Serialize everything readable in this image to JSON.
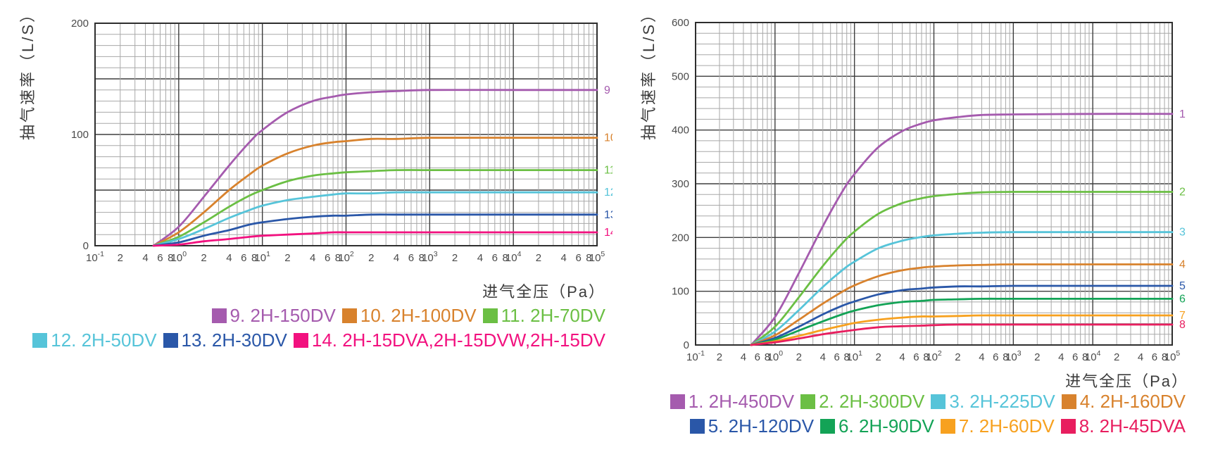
{
  "chart_data": [
    {
      "type": "line",
      "title": "",
      "ylabel": "抽气速率（L/S）",
      "xlabel": "进气全压（Pa）",
      "x_scale": "log",
      "xlim": [
        0.1,
        100000
      ],
      "ylim": [
        0,
        200
      ],
      "y_tick_labels": [
        "0",
        "100",
        "200"
      ],
      "y_minor_step": 10,
      "y_major_step": 50,
      "x_exponents": [
        -1,
        0,
        1,
        2,
        3,
        4,
        5
      ],
      "x_minor_labels": [
        "2",
        "4",
        "6",
        "8"
      ],
      "grid": "on",
      "legend_position": "bottom-right",
      "x_pa": [
        0.5,
        1,
        2,
        4,
        7,
        10,
        20,
        40,
        70,
        100,
        200,
        400,
        1000,
        10000,
        100000
      ],
      "series": [
        {
          "id": "9",
          "legend": "9. 2H-150DV",
          "color": "#a55bae",
          "max_speed_ls": 140,
          "speed_ls": [
            0,
            17,
            44,
            72,
            93,
            104,
            120,
            130,
            134,
            136,
            138,
            139,
            140,
            140,
            140
          ]
        },
        {
          "id": "10",
          "legend": "10. 2H-100DV",
          "color": "#d8822d",
          "max_speed_ls": 97,
          "speed_ls": [
            0,
            12,
            30,
            50,
            64,
            72,
            83,
            90,
            93,
            94,
            96,
            96,
            97,
            97,
            97
          ]
        },
        {
          "id": "11",
          "legend": "11.  2H-70DV",
          "color": "#6bbf44",
          "max_speed_ls": 68,
          "speed_ls": [
            0,
            8,
            21,
            35,
            45,
            50,
            58,
            63,
            65,
            66,
            67,
            68,
            68,
            68,
            68
          ]
        },
        {
          "id": "12",
          "legend": "12. 2H-50DV",
          "color": "#56c4d9",
          "max_speed_ls": 48,
          "speed_ls": [
            0,
            6,
            15,
            25,
            32,
            36,
            41,
            44,
            46,
            47,
            47,
            48,
            48,
            48,
            48
          ]
        },
        {
          "id": "13",
          "legend": "13. 2H-30DV",
          "color": "#2a57a8",
          "max_speed_ls": 28,
          "speed_ls": [
            0,
            3,
            9,
            14,
            19,
            21,
            24,
            26,
            27,
            27,
            28,
            28,
            28,
            28,
            28
          ]
        },
        {
          "id": "14",
          "legend": "14. 2H-15DVA,2H-15DVW,2H-15DV",
          "color": "#f2117f",
          "max_speed_ls": 12,
          "speed_ls": [
            0,
            1,
            4,
            6,
            8,
            9,
            10,
            11,
            12,
            12,
            12,
            12,
            12,
            12,
            12
          ]
        }
      ]
    },
    {
      "type": "line",
      "title": "",
      "ylabel": "抽气速率（L/S）",
      "xlabel": "进气全压（Pa）",
      "x_scale": "log",
      "xlim": [
        0.1,
        100000
      ],
      "ylim": [
        0,
        600
      ],
      "y_tick_labels": [
        "0",
        "100",
        "200",
        "300",
        "400",
        "500",
        "600"
      ],
      "y_minor_step": 20,
      "y_major_step": 100,
      "x_exponents": [
        -1,
        0,
        1,
        2,
        3,
        4,
        5
      ],
      "x_minor_labels": [
        "2",
        "4",
        "6",
        "8"
      ],
      "grid": "on",
      "legend_position": "bottom-right",
      "x_pa": [
        0.5,
        1,
        2,
        4,
        7,
        10,
        20,
        40,
        70,
        100,
        200,
        400,
        1000,
        10000,
        100000
      ],
      "series": [
        {
          "id": "1",
          "legend": "1. 2H-450DV",
          "color": "#a55bae",
          "max_speed_ls": 430,
          "speed_ls": [
            0,
            52,
            134,
            221,
            285,
            318,
            368,
            398,
            412,
            418,
            424,
            428,
            429,
            430,
            430
          ]
        },
        {
          "id": "2",
          "legend": "2. 2H-300DV",
          "color": "#6bbf44",
          "max_speed_ls": 285,
          "speed_ls": [
            0,
            34,
            89,
            147,
            189,
            211,
            244,
            264,
            273,
            277,
            281,
            284,
            285,
            285,
            285
          ]
        },
        {
          "id": "3",
          "legend": "3. 2H-225DV",
          "color": "#56c4d9",
          "max_speed_ls": 210,
          "speed_ls": [
            0,
            25,
            65,
            108,
            139,
            155,
            180,
            194,
            201,
            204,
            207,
            209,
            210,
            210,
            210
          ]
        },
        {
          "id": "4",
          "legend": "4. 2H-160DV",
          "color": "#d8822d",
          "max_speed_ls": 150,
          "speed_ls": [
            0,
            18,
            47,
            77,
            99,
            111,
            128,
            139,
            144,
            146,
            148,
            149,
            150,
            150,
            150
          ]
        },
        {
          "id": "5",
          "legend": "5. 2H-120DV",
          "color": "#2a57a8",
          "max_speed_ls": 110,
          "speed_ls": [
            0,
            13,
            34,
            57,
            73,
            81,
            94,
            102,
            105,
            107,
            109,
            109,
            110,
            110,
            110
          ]
        },
        {
          "id": "6",
          "legend": "6. 2H-90DV",
          "color": "#13a356",
          "max_speed_ls": 86,
          "speed_ls": [
            0,
            10,
            27,
            44,
            57,
            64,
            74,
            80,
            82,
            84,
            85,
            86,
            86,
            86,
            86
          ]
        },
        {
          "id": "7",
          "legend": "7. 2H-60DV",
          "color": "#f7a11f",
          "max_speed_ls": 55,
          "speed_ls": [
            0,
            7,
            17,
            28,
            36,
            41,
            47,
            51,
            53,
            53,
            54,
            55,
            55,
            55,
            55
          ]
        },
        {
          "id": "8",
          "legend": "8. 2H-45DVA",
          "color": "#e81e5f",
          "max_speed_ls": 38,
          "speed_ls": [
            0,
            5,
            12,
            20,
            25,
            28,
            33,
            35,
            36,
            37,
            38,
            38,
            38,
            38,
            38
          ]
        }
      ]
    }
  ]
}
